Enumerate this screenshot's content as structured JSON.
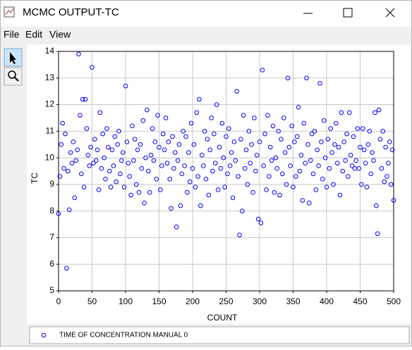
{
  "window": {
    "title": "MCMC OUTPUT-TC",
    "menu": [
      "File",
      "Edit",
      "View"
    ]
  },
  "chart_data": {
    "type": "scatter",
    "xlabel": "COUNT",
    "ylabel": "TC",
    "xlim": [
      0,
      500
    ],
    "ylim": [
      5,
      14
    ],
    "xticks": [
      0,
      50,
      100,
      150,
      200,
      250,
      300,
      350,
      400,
      450,
      500
    ],
    "yticks": [
      5,
      6,
      7,
      8,
      9,
      10,
      11,
      12,
      13,
      14
    ],
    "grid": true,
    "x": [
      0,
      2,
      4,
      6,
      8,
      10,
      12,
      14,
      16,
      18,
      20,
      22,
      24,
      26,
      28,
      30,
      32,
      34,
      36,
      38,
      40,
      42,
      44,
      46,
      48,
      50,
      52,
      54,
      56,
      58,
      60,
      62,
      64,
      66,
      68,
      70,
      72,
      74,
      76,
      78,
      80,
      82,
      84,
      86,
      88,
      90,
      92,
      94,
      96,
      98,
      100,
      102,
      104,
      106,
      108,
      110,
      112,
      114,
      116,
      118,
      120,
      122,
      124,
      126,
      128,
      130,
      132,
      134,
      136,
      138,
      140,
      142,
      144,
      146,
      148,
      150,
      152,
      154,
      156,
      158,
      160,
      162,
      164,
      166,
      168,
      170,
      172,
      174,
      176,
      178,
      180,
      182,
      184,
      186,
      188,
      190,
      192,
      194,
      196,
      198,
      200,
      202,
      204,
      206,
      208,
      210,
      212,
      214,
      216,
      218,
      220,
      222,
      224,
      226,
      228,
      230,
      232,
      234,
      236,
      238,
      240,
      242,
      244,
      246,
      248,
      250,
      252,
      254,
      256,
      258,
      260,
      262,
      264,
      266,
      268,
      270,
      272,
      274,
      276,
      278,
      280,
      282,
      284,
      286,
      288,
      290,
      292,
      294,
      296,
      298,
      300,
      302,
      304,
      306,
      308,
      310,
      312,
      314,
      316,
      318,
      320,
      322,
      324,
      326,
      328,
      330,
      332,
      334,
      336,
      338,
      340,
      342,
      344,
      346,
      348,
      350,
      352,
      354,
      356,
      358,
      360,
      362,
      364,
      366,
      368,
      370,
      372,
      374,
      376,
      378,
      380,
      382,
      384,
      386,
      388,
      390,
      392,
      394,
      396,
      398,
      400,
      402,
      404,
      406,
      408,
      410,
      412,
      414,
      416,
      418,
      420,
      422,
      424,
      426,
      428,
      430,
      432,
      434,
      436,
      438,
      440,
      442,
      444,
      446,
      448,
      450,
      452,
      454,
      456,
      458,
      460,
      462,
      464,
      466,
      468,
      470,
      472,
      474,
      476,
      478,
      480,
      482,
      484,
      486,
      488,
      490,
      492,
      494,
      496,
      498,
      500
    ],
    "series": [
      {
        "name": "TIME OF CONCENTRATION MANUAL 0",
        "color": "#0000ff",
        "values": [
          7.9,
          9.3,
          10.5,
          11.3,
          9.6,
          10.9,
          5.85,
          9.5,
          8.05,
          10.2,
          9.8,
          10.6,
          8.5,
          9.9,
          10.3,
          13.9,
          11.6,
          9.4,
          12.2,
          8.9,
          12.2,
          11.1,
          10.1,
          9.7,
          10.4,
          13.4,
          9.8,
          10.7,
          9.9,
          10.3,
          8.8,
          11.7,
          9.6,
          10.9,
          10.0,
          9.2,
          11.1,
          10.4,
          9.5,
          8.9,
          10.3,
          9.7,
          10.8,
          9.1,
          10.5,
          11.0,
          9.4,
          9.9,
          10.2,
          8.9,
          12.7,
          10.6,
          9.8,
          9.3,
          8.6,
          11.2,
          9.9,
          10.7,
          9.0,
          10.3,
          8.7,
          10.5,
          9.6,
          11.4,
          8.3,
          10.0,
          11.8,
          9.5,
          8.7,
          10.1,
          11.1,
          9.9,
          10.6,
          9.2,
          11.6,
          10.4,
          8.8,
          9.7,
          10.9,
          10.3,
          11.5,
          9.8,
          10.6,
          9.2,
          8.1,
          10.8,
          9.6,
          10.2,
          7.4,
          9.9,
          10.5,
          8.2,
          9.4,
          11.0,
          9.7,
          10.8,
          8.7,
          10.2,
          9.1,
          11.3,
          9.6,
          10.5,
          8.9,
          11.7,
          9.3,
          12.2,
          8.2,
          10.1,
          9.7,
          11.0,
          9.2,
          10.7,
          8.6,
          10.3,
          11.5,
          9.5,
          10.9,
          9.8,
          12.0,
          8.8,
          10.4,
          9.6,
          11.3,
          10.0,
          8.9,
          10.8,
          9.4,
          11.1,
          9.7,
          10.2,
          8.5,
          10.6,
          9.9,
          12.5,
          9.3,
          7.1,
          10.7,
          8.0,
          11.6,
          9.6,
          10.3,
          9.0,
          11.0,
          9.8,
          10.5,
          8.7,
          11.5,
          9.5,
          10.1,
          7.7,
          10.6,
          7.55,
          13.3,
          9.7,
          10.9,
          8.8,
          11.6,
          9.3,
          10.4,
          9.9,
          11.2,
          8.7,
          10.0,
          9.6,
          11.0,
          8.6,
          10.7,
          9.4,
          11.5,
          10.2,
          9.0,
          13.0,
          10.4,
          9.7,
          11.2,
          8.9,
          10.6,
          9.3,
          10.8,
          11.9,
          9.5,
          10.1,
          8.4,
          11.3,
          9.8,
          13.0,
          10.5,
          8.3,
          9.9,
          10.9,
          9.4,
          11.0,
          8.8,
          10.3,
          9.7,
          12.8,
          10.6,
          9.2,
          11.4,
          10.0,
          8.9,
          10.7,
          9.6,
          11.1,
          10.2,
          9.0,
          10.5,
          11.3,
          9.8,
          10.4,
          8.6,
          11.7,
          9.5,
          10.6,
          9.9,
          10.9,
          9.3,
          11.7,
          10.1,
          9.7,
          10.8,
          9.6,
          9.9,
          11.1,
          9.6,
          10.4,
          9.0,
          11.1,
          10.3,
          9.8,
          8.9,
          10.5,
          11.0,
          9.4,
          10.2,
          9.9,
          11.7,
          8.2,
          7.15,
          11.8,
          10.7,
          9.6,
          11.0,
          9.1,
          10.4,
          9.3,
          9.8,
          10.6,
          9.0,
          10.3,
          8.4
        ]
      }
    ]
  }
}
